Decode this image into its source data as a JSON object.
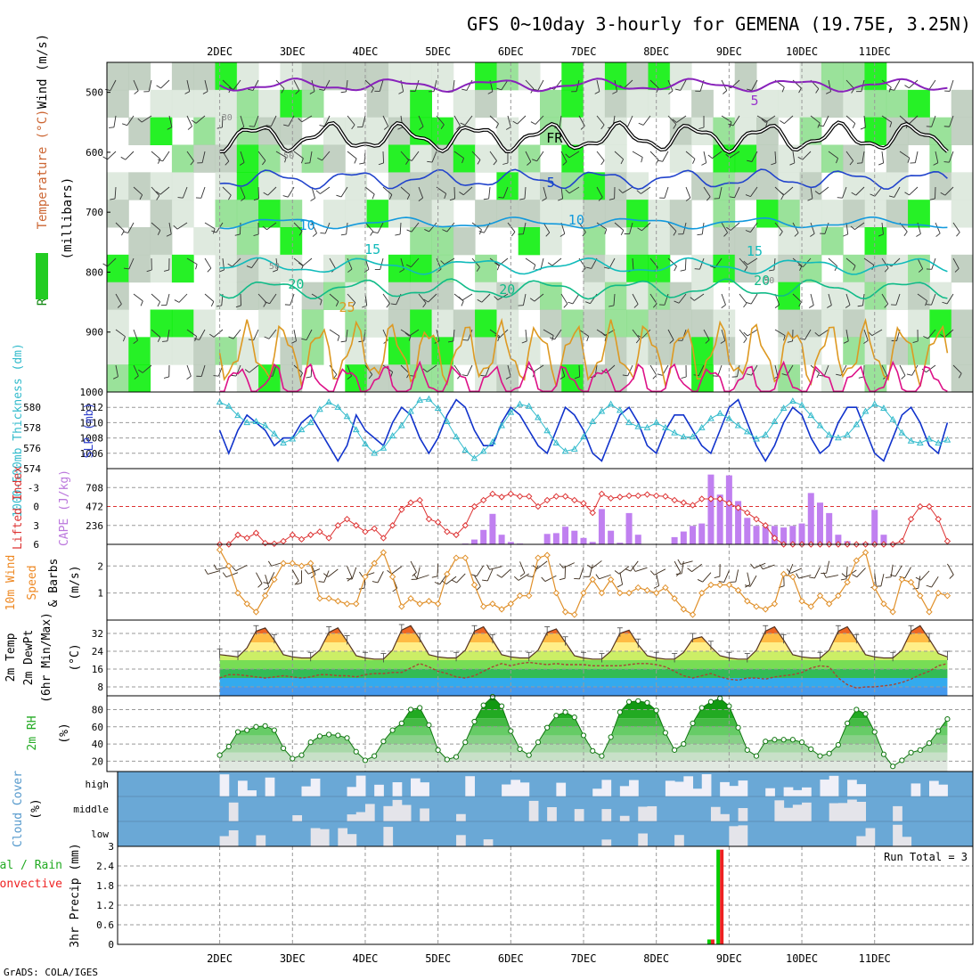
{
  "title": "GFS 0~10day 3-hourly for GEMENA (19.75E, 3.25N)",
  "footer": "GrADS: COLA/IGES",
  "colors": {
    "rh_green": "#00dd00",
    "rh_gray": "#b4c8b4",
    "purple": "#9933cc",
    "cape_bar": "#c080f0",
    "lifted_red": "#dd3333",
    "wind_orange": "#e0902a",
    "cloud_blue": "#6aa8d6",
    "cloud_white": "#f0f0f8",
    "slp_blue": "#1133cc",
    "thickness_cyan": "#33bbcc",
    "precip_green": "#00cc00",
    "precip_red": "#ee2222"
  },
  "chart_data": [
    {
      "type": "heatmap",
      "name": "cross-section",
      "ylabel_parts": [
        "RH (%)",
        "Temperature (°C)",
        "Wind (m/s)"
      ],
      "ylabel_units": "(millibars)",
      "y_ticks": [
        500,
        600,
        700,
        800,
        900,
        1000
      ],
      "ylim": [
        450,
        1000
      ],
      "x_ticks": [
        "2DEC",
        "3DEC",
        "4DEC",
        "5DEC",
        "6DEC",
        "7DEC",
        "8DEC",
        "9DEC",
        "10DEC",
        "11DEC"
      ],
      "contour_labels": [
        {
          "text": "5",
          "color": "#9933cc"
        },
        {
          "text": "FR",
          "color": "#000000"
        },
        {
          "text": "5",
          "color": "#1144cc"
        },
        {
          "text": "10",
          "color": "#1199dd"
        },
        {
          "text": "10",
          "color": "#1199dd"
        },
        {
          "text": "15",
          "color": "#11bbbb"
        },
        {
          "text": "15",
          "color": "#11bbbb"
        },
        {
          "text": "20",
          "color": "#11bb88"
        },
        {
          "text": "20",
          "color": "#11bb88"
        },
        {
          "text": "20",
          "color": "#11bb88"
        },
        {
          "text": "25",
          "color": "#dd9922"
        },
        {
          "text": "30",
          "color": "#888888"
        },
        {
          "text": "50",
          "color": "#888888"
        },
        {
          "text": "50",
          "color": "#888888"
        },
        {
          "text": "50",
          "color": "#888888"
        }
      ]
    },
    {
      "type": "line",
      "name": "thickness-slp",
      "ylabel_left": "1000-500mb Thickness (dm)",
      "ylabel_right": "SLP (mb)",
      "thickness_ticks": [
        574,
        576,
        578,
        580
      ],
      "slp_ticks": [
        1006,
        1008,
        1010,
        1012
      ],
      "thickness_ylim": [
        574,
        581.5
      ],
      "series": [
        {
          "values": [
            1009,
            1006,
            1009,
            1011,
            1010,
            1009,
            1007,
            1008,
            1008,
            1010,
            1011,
            1009,
            1007,
            1005,
            1007,
            1011,
            1009,
            1008,
            1007,
            1010,
            1012,
            1011,
            1008,
            1006,
            1008,
            1011,
            1013,
            1012,
            1009,
            1007,
            1007,
            1010,
            1012,
            1011,
            1009,
            1007,
            1006,
            1009,
            1012,
            1011,
            1009,
            1006,
            1005,
            1008,
            1011,
            1012,
            1010,
            1007,
            1006,
            1009,
            1011,
            1011,
            1009,
            1007,
            1006,
            1009,
            1012,
            1013,
            1010,
            1007,
            1005,
            1007,
            1010,
            1012,
            1011,
            1008,
            1006,
            1007,
            1010,
            1012,
            1012,
            1009,
            1006,
            1005,
            1008,
            1011,
            1012,
            1010,
            1007,
            1006,
            1010
          ]
        },
        {
          "values": [
            580.5,
            580.1,
            579.2,
            578.5,
            578.6,
            578.2,
            577.4,
            576.5,
            576.9,
            577.8,
            578.5,
            579.8,
            580.5,
            580.0,
            579.1,
            577.8,
            576.4,
            575.5,
            576.0,
            577.2,
            578.2,
            579.6,
            580.7,
            580.8,
            579.9,
            578.6,
            577.1,
            575.8,
            575.0,
            575.7,
            576.6,
            578.2,
            579.5,
            580.3,
            580.1,
            579.0,
            577.7,
            576.5,
            575.7,
            575.9,
            577.1,
            578.6,
            579.6,
            580.3,
            579.7,
            578.5,
            578.1,
            578.0,
            578.5,
            578.0,
            577.5,
            577.1,
            577.1,
            578.0,
            578.9,
            579.4,
            578.9,
            578.2,
            577.6,
            576.9,
            577.3,
            578.6,
            579.9,
            580.6,
            580.2,
            579.2,
            578.2,
            577.3,
            577.0,
            577.3,
            578.3,
            579.6,
            580.3,
            579.9,
            578.8,
            577.5,
            576.7,
            576.5,
            576.9,
            576.5,
            576.8
          ]
        }
      ]
    },
    {
      "type": "bar",
      "name": "cape-lifted-index",
      "ylabel_left": "Lifted Index",
      "ylabel_right": "CAPE (J/kg)",
      "lifted_ticks": [
        "-3",
        "0",
        "3",
        "6"
      ],
      "cape_ticks": [
        236,
        472,
        708
      ],
      "cape_ylim": [
        0,
        944
      ],
      "lifted_ylim": [
        6,
        -6
      ],
      "series": [
        {
          "values": [
            0,
            0,
            0,
            0,
            0,
            0,
            0,
            0,
            0,
            0,
            0,
            0,
            0,
            0,
            0,
            0,
            0,
            0,
            0,
            0,
            0,
            0,
            0,
            5,
            5,
            0,
            0,
            10,
            60,
            180,
            380,
            120,
            30,
            10,
            0,
            0,
            130,
            140,
            220,
            170,
            80,
            30,
            440,
            170,
            20,
            390,
            120,
            0,
            0,
            0,
            90,
            160,
            230,
            260,
            870,
            620,
            860,
            540,
            330,
            230,
            220,
            230,
            210,
            230,
            260,
            640,
            520,
            390,
            120,
            40,
            0,
            20,
            430,
            120,
            20,
            0,
            0,
            0,
            0,
            0,
            0
          ]
        },
        {
          "values": [
            6,
            6,
            4.5,
            5,
            4.2,
            5.8,
            5.9,
            5.5,
            4.5,
            5.2,
            4.5,
            4.0,
            5.0,
            3.0,
            2.0,
            3.0,
            4.0,
            3.5,
            5.0,
            3.0,
            0.5,
            -0.6,
            -1.0,
            2.0,
            2.5,
            4.0,
            4.5,
            3.0,
            0.0,
            -1.0,
            -2.0,
            -1.5,
            -2.0,
            -1.6,
            -1.6,
            0.0,
            -1.0,
            -1.6,
            -1.6,
            -1.0,
            -0.5,
            1.0,
            -2.0,
            -1.3,
            -1.5,
            -1.7,
            -1.7,
            -1.9,
            -1.7,
            -1.6,
            -1.0,
            -0.6,
            -0.2,
            -1.2,
            -1.2,
            -1.2,
            -0.5,
            0.2,
            1.0,
            2.0,
            3.0,
            5.0,
            6,
            6,
            6,
            6,
            6,
            6,
            6,
            6,
            6,
            6,
            6,
            6,
            6,
            5.5,
            2.0,
            0.0,
            0.0,
            2.0,
            5.5
          ]
        }
      ]
    },
    {
      "type": "line",
      "name": "wind-10m",
      "ylabel": "10m Wind Speed & Barbs (m/s)",
      "y_ticks": [
        1,
        2
      ],
      "ylim": [
        0,
        2.8
      ],
      "series": [
        {
          "values": [
            2.6,
            2.0,
            1.0,
            0.6,
            0.3,
            0.9,
            1.5,
            2.1,
            2.1,
            2.0,
            2.1,
            0.8,
            0.8,
            0.7,
            0.6,
            0.6,
            1.6,
            2.1,
            2.5,
            1.6,
            0.5,
            0.8,
            0.6,
            0.7,
            0.6,
            1.7,
            2.3,
            2.3,
            1.3,
            0.5,
            0.6,
            0.4,
            0.6,
            0.9,
            0.9,
            2.3,
            2.4,
            1.0,
            0.3,
            0.2,
            1.0,
            1.5,
            1.0,
            1.5,
            1.0,
            1.0,
            1.2,
            1.1,
            1.0,
            1.2,
            0.8,
            0.4,
            0.2,
            1.0,
            1.3,
            1.3,
            1.3,
            1.1,
            0.7,
            0.5,
            0.4,
            0.6,
            1.7,
            1.6,
            0.7,
            0.5,
            0.9,
            0.6,
            0.9,
            1.4,
            2.2,
            2.5,
            1.2,
            0.6,
            0.3,
            1.5,
            1.4,
            0.9,
            0.3,
            1.0,
            0.9
          ]
        }
      ]
    },
    {
      "type": "area",
      "name": "temp-dewpoint",
      "ylabel": "2m Temp 2m DewPt (6hr Min/Max) (°C)",
      "y_ticks": [
        8,
        16,
        24,
        32
      ],
      "ylim": [
        4,
        38
      ],
      "series": [
        {
          "values": [
            22.5,
            22.0,
            21.5,
            25.5,
            33.0,
            34.5,
            29.0,
            22.5,
            21.5,
            21.0,
            21.0,
            24.5,
            32.5,
            34.5,
            28.5,
            22.0,
            21.0,
            20.5,
            20.5,
            24.5,
            33.5,
            35.5,
            29.5,
            22.5,
            21.5,
            21.0,
            21.0,
            24.5,
            33.0,
            35.0,
            29.0,
            22.5,
            21.5,
            21.0,
            21.0,
            24.5,
            32.5,
            34.0,
            28.0,
            22.0,
            21.0,
            20.5,
            20.5,
            24.0,
            32.0,
            33.5,
            27.0,
            22.0,
            21.0,
            20.5,
            20.5,
            23.5,
            29.5,
            30.5,
            26.0,
            22.0,
            21.0,
            20.5,
            20.5,
            24.5,
            33.0,
            35.0,
            29.0,
            22.5,
            21.5,
            21.0,
            21.0,
            24.5,
            33.0,
            35.0,
            29.0,
            22.5,
            21.5,
            21.0,
            21.0,
            24.5,
            33.0,
            35.5,
            29.5,
            23.0,
            21.5
          ]
        },
        {
          "values": [
            12.0,
            13.5,
            13.5,
            13.0,
            12.5,
            12.0,
            12.5,
            13.0,
            12.5,
            12.0,
            12.5,
            13.5,
            13.5,
            13.0,
            13.0,
            12.5,
            13.5,
            14.0,
            14.0,
            14.5,
            14.5,
            16.5,
            18.5,
            17.0,
            15.0,
            14.0,
            12.5,
            12.0,
            13.0,
            15.0,
            17.0,
            18.5,
            17.5,
            18.5,
            19.0,
            18.5,
            18.0,
            18.5,
            18.0,
            18.0,
            18.0,
            17.5,
            17.5,
            17.5,
            17.5,
            18.0,
            18.5,
            18.5,
            18.0,
            17.0,
            15.0,
            13.0,
            12.0,
            13.0,
            14.0,
            12.5,
            11.5,
            11.0,
            12.0,
            12.0,
            11.5,
            12.5,
            13.0,
            13.5,
            14.5,
            16.5,
            17.5,
            17.0,
            12.0,
            9.0,
            7.5,
            8.0,
            8.0,
            8.5,
            9.0,
            10.0,
            11.5,
            13.5,
            15.0,
            17.5,
            18.5
          ]
        }
      ]
    },
    {
      "type": "area",
      "name": "rh-2m",
      "ylabel": "2m RH (%)",
      "y_ticks": [
        20,
        40,
        60,
        80
      ],
      "ylim": [
        8,
        96
      ],
      "series": [
        {
          "values": [
            27,
            37,
            54,
            56,
            60,
            61,
            56,
            35,
            23,
            27,
            42,
            49,
            51,
            50,
            47,
            31,
            21,
            26,
            43,
            56,
            64,
            80,
            82,
            62,
            33,
            22,
            25,
            42,
            66,
            85,
            95,
            84,
            55,
            34,
            27,
            42,
            59,
            73,
            77,
            71,
            50,
            32,
            26,
            48,
            77,
            89,
            90,
            88,
            79,
            53,
            33,
            40,
            64,
            82,
            89,
            93,
            84,
            59,
            33,
            26,
            43,
            45,
            45,
            45,
            42,
            34,
            26,
            29,
            39,
            64,
            80,
            75,
            54,
            28,
            14,
            21,
            30,
            33,
            41,
            55,
            69
          ]
        }
      ]
    },
    {
      "type": "heatmap",
      "name": "cloud-cover",
      "ylabel": "Cloud Cover (%)",
      "y_ticks": [
        "high",
        "middle",
        "low"
      ]
    },
    {
      "type": "bar",
      "name": "precip-3hr",
      "ylabel": "3hr Precip (mm)",
      "legend": [
        "Total / Rain",
        "Convective"
      ],
      "y_ticks": [
        0,
        0.6,
        1.2,
        1.8,
        2.4,
        3
      ],
      "ylim": [
        0,
        3
      ],
      "annotation": "Run Total = 3",
      "series": [
        {
          "values": [
            0,
            0,
            0,
            0,
            0,
            0,
            0,
            0,
            0,
            0,
            0,
            0,
            0,
            0,
            0,
            0,
            0,
            0,
            0,
            0,
            0,
            0,
            0,
            0,
            0,
            0,
            0,
            0,
            0,
            0,
            0,
            0,
            0,
            0,
            0,
            0,
            0,
            0,
            0,
            0,
            0,
            0,
            0,
            0,
            0,
            0,
            0,
            0,
            0,
            0,
            0,
            0,
            0,
            0,
            0.15,
            2.9,
            0,
            0,
            0,
            0,
            0,
            0,
            0,
            0,
            0,
            0,
            0,
            0,
            0,
            0,
            0,
            0,
            0,
            0,
            0,
            0,
            0,
            0,
            0,
            0,
            0
          ]
        }
      ]
    }
  ]
}
